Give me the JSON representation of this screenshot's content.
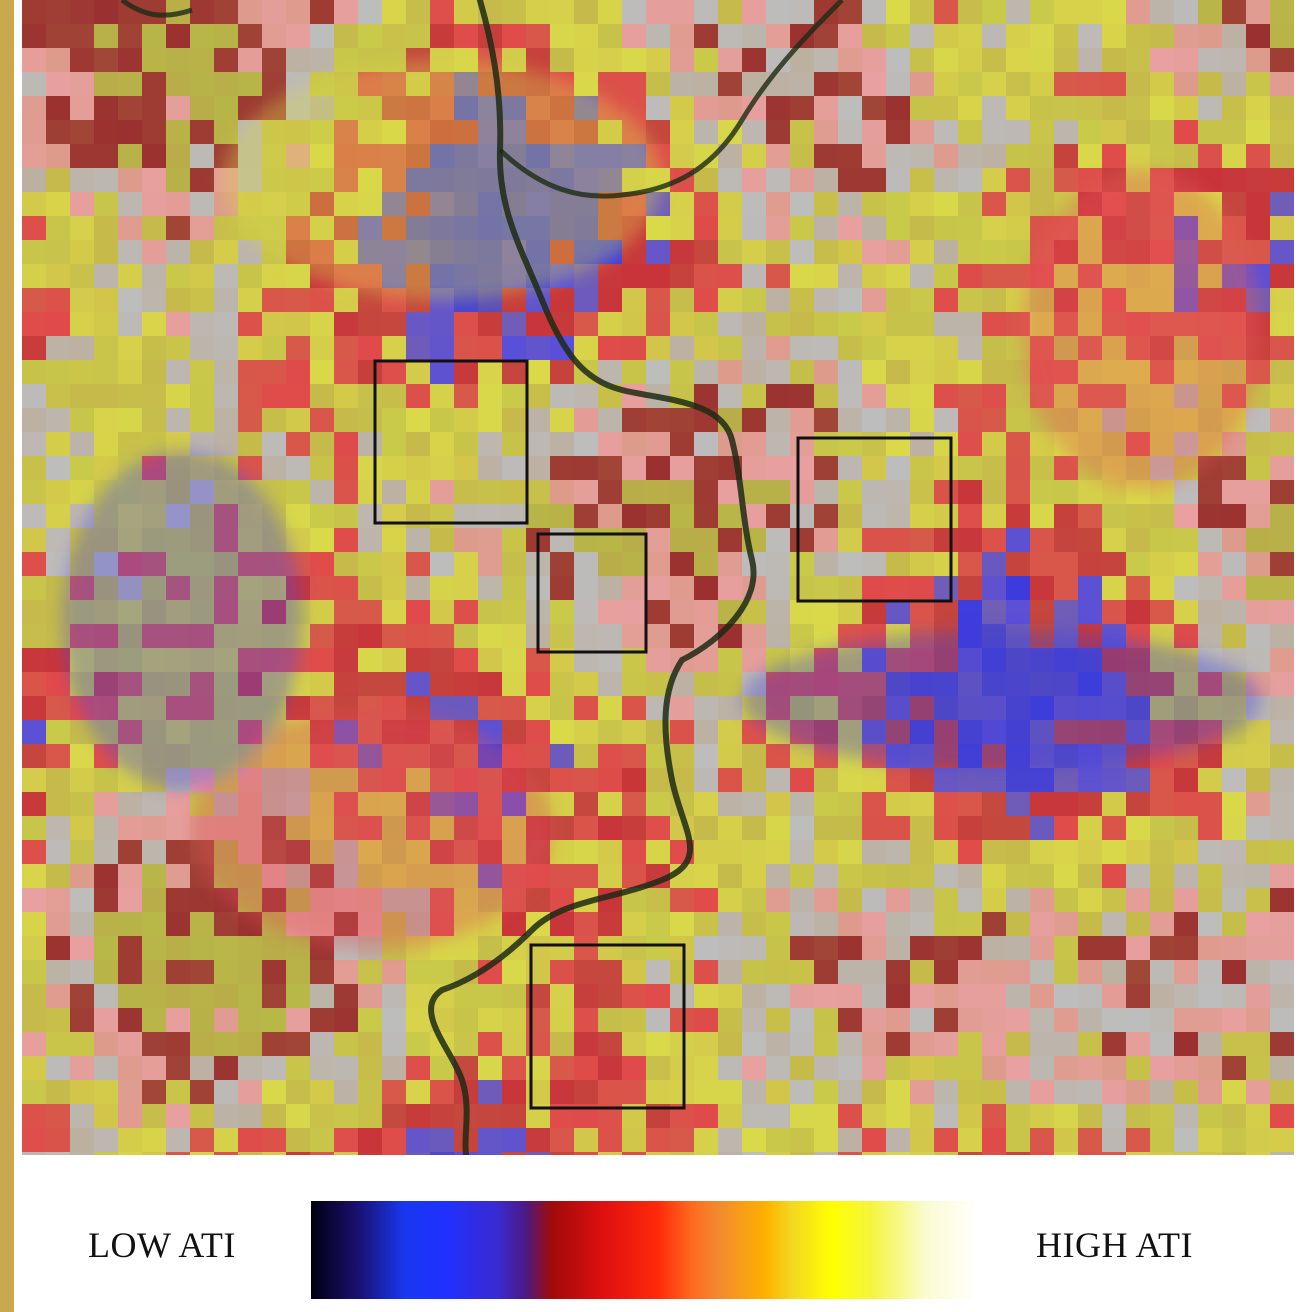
{
  "map": {
    "colormap_stops": [
      "#000010",
      "#1838f0",
      "#4a1a88",
      "#e01010",
      "#ff6a20",
      "#ffb000",
      "#ffff00",
      "#ffffff"
    ]
  },
  "legend": {
    "low_label": "LOW ATI",
    "high_label": "HIGH ATI"
  }
}
